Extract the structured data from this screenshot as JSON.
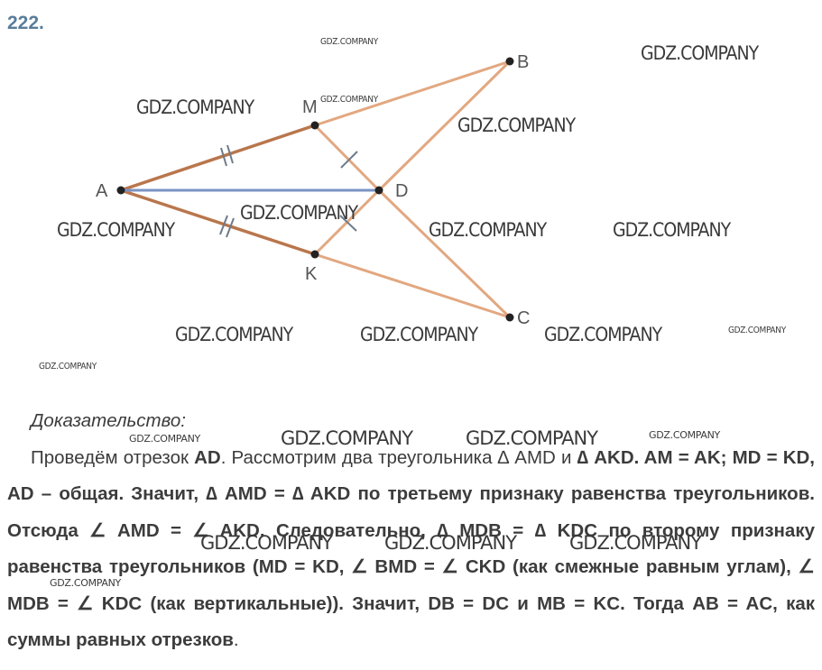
{
  "problem": {
    "number": "222."
  },
  "figure": {
    "points": {
      "A": "A",
      "B": "B",
      "C": "C",
      "D": "D",
      "M": "M",
      "K": "K"
    },
    "colors": {
      "brown": "#b9764c",
      "light": "#e2a881",
      "blue": "#7a93c4",
      "tick": "#6d7a8a"
    }
  },
  "watermark": {
    "text": "GDZ.COMPANY"
  },
  "proof": {
    "title": "Доказательство:",
    "p1": "Проведём отрезок ",
    "ad": "AD",
    "p2": ". Рассмотрим два треугольника ∆ AMD и ",
    "p3": "∆ AKD. AM = AK; MD = KD, AD – общая. Значит, ∆ AMD = ∆ AKD по третьему признаку равенства треугольников. Отсюда ∠ AMD = ∠ AKD. Следовательно, ∆ MDB = ∆ KDC по второму признаку равенства треугольников (MD = KD, ∠ BMD = ∠ CKD (как смежные равным углам), ∠ MDB = ∠ KDC (как вертикальные)). Значит, DB = DC и MB = KC. Тогда AB = AC, как суммы равных отрезков",
    "end": "."
  }
}
